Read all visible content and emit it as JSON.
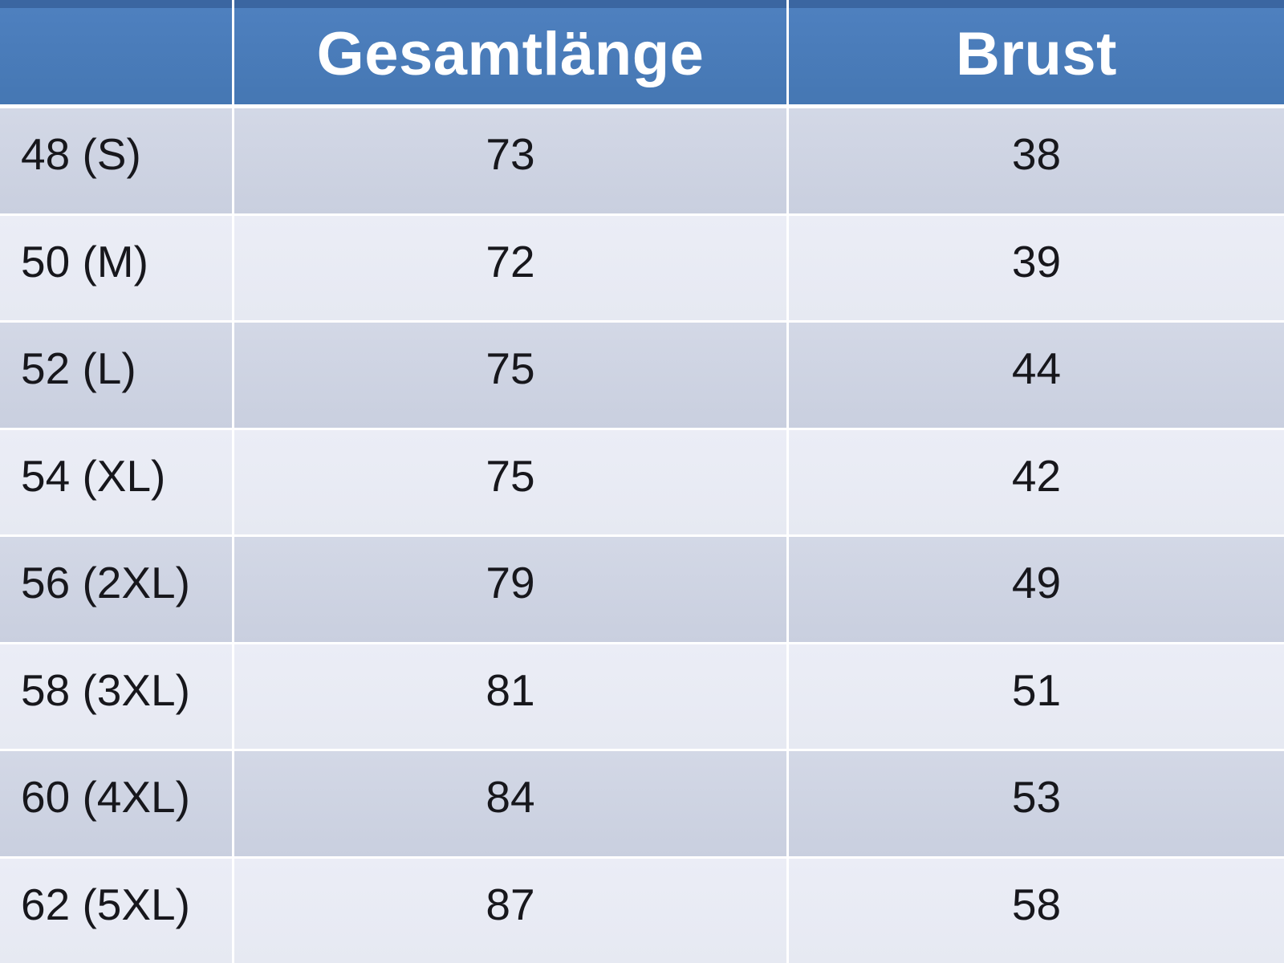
{
  "chart_data": {
    "type": "table",
    "title": "",
    "columns": [
      "",
      "Gesamtlänge",
      "Brust"
    ],
    "rows": [
      [
        "48 (S)",
        73,
        38
      ],
      [
        "50 (M)",
        72,
        39
      ],
      [
        "52 (L)",
        75,
        44
      ],
      [
        "54 (XL)",
        75,
        42
      ],
      [
        "56 (2XL)",
        79,
        49
      ],
      [
        "58 (3XL)",
        81,
        51
      ],
      [
        "60 (4XL)",
        84,
        53
      ],
      [
        "62 (5XL)",
        87,
        58
      ]
    ],
    "layout": {
      "banded_rows": true,
      "header_position": "top",
      "first_band": "dark"
    },
    "colors": {
      "header_bg": "#4a7bba",
      "header_top_border": "#3b66a1",
      "header_text": "#ffffff",
      "band_dark": "#ced4e3",
      "band_light": "#e9ebf4",
      "separator": "#ffffff",
      "cell_text": "#17171c"
    }
  }
}
